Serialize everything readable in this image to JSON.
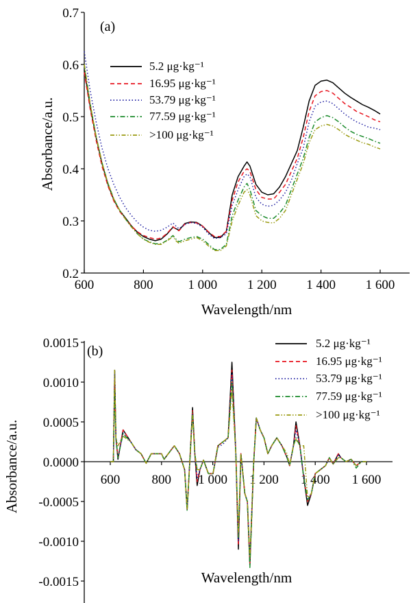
{
  "chart_data": [
    {
      "type": "line",
      "panel_label": "(a)",
      "xlabel": "Wavelength/nm",
      "ylabel": "Absorbance/a.u.",
      "xlim": [
        600,
        1700
      ],
      "ylim": [
        0.2,
        0.7
      ],
      "xticks": [
        600,
        800,
        1000,
        1200,
        1400,
        1600
      ],
      "xtick_labels": [
        "600",
        "800",
        "1 000",
        "1 200",
        "1 400",
        "1 600"
      ],
      "yticks": [
        0.2,
        0.3,
        0.4,
        0.5,
        0.6,
        0.7
      ],
      "ytick_labels": [
        "0.2",
        "0.3",
        "0.4",
        "0.5",
        "0.6",
        "0.7"
      ],
      "grid": false,
      "legend_position": "upper-left",
      "x": [
        600,
        620,
        640,
        660,
        680,
        700,
        720,
        740,
        760,
        780,
        800,
        820,
        840,
        860,
        880,
        900,
        910,
        920,
        940,
        960,
        980,
        1000,
        1020,
        1040,
        1060,
        1080,
        1100,
        1120,
        1140,
        1150,
        1160,
        1180,
        1200,
        1220,
        1240,
        1260,
        1280,
        1300,
        1320,
        1340,
        1360,
        1380,
        1400,
        1420,
        1440,
        1460,
        1480,
        1500,
        1520,
        1540,
        1560,
        1580,
        1600
      ],
      "series": [
        {
          "name": "5.2 μg·kg⁻¹",
          "color": "#000000",
          "dash": "solid",
          "values": [
            0.59,
            0.52,
            0.46,
            0.41,
            0.37,
            0.34,
            0.32,
            0.305,
            0.29,
            0.278,
            0.27,
            0.265,
            0.262,
            0.265,
            0.275,
            0.288,
            0.285,
            0.282,
            0.295,
            0.298,
            0.297,
            0.29,
            0.278,
            0.268,
            0.268,
            0.28,
            0.35,
            0.385,
            0.405,
            0.413,
            0.405,
            0.37,
            0.355,
            0.35,
            0.352,
            0.365,
            0.385,
            0.41,
            0.435,
            0.48,
            0.53,
            0.56,
            0.568,
            0.57,
            0.565,
            0.555,
            0.545,
            0.537,
            0.53,
            0.523,
            0.518,
            0.512,
            0.505
          ]
        },
        {
          "name": "16.95 μg·kg⁻¹",
          "color": "#e8141e",
          "dash": "dashed",
          "values": [
            0.585,
            0.515,
            0.455,
            0.405,
            0.367,
            0.338,
            0.318,
            0.303,
            0.29,
            0.279,
            0.272,
            0.268,
            0.265,
            0.267,
            0.276,
            0.289,
            0.284,
            0.281,
            0.294,
            0.297,
            0.296,
            0.29,
            0.279,
            0.27,
            0.27,
            0.28,
            0.34,
            0.375,
            0.395,
            0.4,
            0.395,
            0.36,
            0.345,
            0.342,
            0.342,
            0.355,
            0.37,
            0.395,
            0.42,
            0.46,
            0.51,
            0.54,
            0.548,
            0.55,
            0.545,
            0.535,
            0.525,
            0.518,
            0.51,
            0.505,
            0.5,
            0.494,
            0.49
          ]
        },
        {
          "name": "53.79 μg·kg⁻¹",
          "color": "#1a1aa0",
          "dash": "dotted",
          "values": [
            0.625,
            0.55,
            0.49,
            0.44,
            0.4,
            0.37,
            0.345,
            0.325,
            0.31,
            0.297,
            0.288,
            0.282,
            0.28,
            0.282,
            0.288,
            0.296,
            0.29,
            0.285,
            0.293,
            0.297,
            0.295,
            0.288,
            0.275,
            0.266,
            0.268,
            0.275,
            0.33,
            0.36,
            0.385,
            0.39,
            0.385,
            0.345,
            0.332,
            0.328,
            0.33,
            0.34,
            0.355,
            0.378,
            0.41,
            0.44,
            0.49,
            0.52,
            0.528,
            0.53,
            0.525,
            0.515,
            0.505,
            0.497,
            0.49,
            0.485,
            0.48,
            0.478,
            0.475
          ]
        },
        {
          "name": "77.59 μg·kg⁻¹",
          "color": "#1a8a2a",
          "dash": "dashdot",
          "values": [
            0.6,
            0.525,
            0.462,
            0.412,
            0.372,
            0.342,
            0.32,
            0.303,
            0.288,
            0.275,
            0.265,
            0.26,
            0.256,
            0.256,
            0.263,
            0.272,
            0.265,
            0.26,
            0.265,
            0.268,
            0.27,
            0.265,
            0.255,
            0.245,
            0.245,
            0.255,
            0.31,
            0.34,
            0.365,
            0.372,
            0.36,
            0.32,
            0.31,
            0.305,
            0.305,
            0.315,
            0.33,
            0.36,
            0.39,
            0.42,
            0.46,
            0.49,
            0.498,
            0.502,
            0.498,
            0.49,
            0.48,
            0.472,
            0.466,
            0.462,
            0.458,
            0.453,
            0.449
          ]
        },
        {
          "name": ">100 μg·kg⁻¹",
          "color": "#9a9a10",
          "dash": "dashdotdot",
          "values": [
            0.6,
            0.525,
            0.462,
            0.412,
            0.372,
            0.342,
            0.32,
            0.303,
            0.288,
            0.275,
            0.265,
            0.259,
            0.255,
            0.255,
            0.262,
            0.27,
            0.262,
            0.257,
            0.262,
            0.265,
            0.268,
            0.262,
            0.252,
            0.243,
            0.243,
            0.252,
            0.3,
            0.33,
            0.355,
            0.36,
            0.35,
            0.31,
            0.3,
            0.297,
            0.296,
            0.305,
            0.32,
            0.35,
            0.38,
            0.41,
            0.45,
            0.475,
            0.482,
            0.485,
            0.482,
            0.475,
            0.466,
            0.46,
            0.455,
            0.45,
            0.447,
            0.442,
            0.438
          ]
        }
      ]
    },
    {
      "type": "line",
      "panel_label": "(b)",
      "xlabel": "Wavelength/nm",
      "ylabel": "Absorbance/a.u.",
      "xlim": [
        500,
        1700
      ],
      "ylim": [
        -0.0018,
        0.0015
      ],
      "xticks": [
        600,
        800,
        1000,
        1200,
        1400,
        1600
      ],
      "xtick_labels": [
        "600",
        "800",
        "1 000",
        "1 200",
        "1 400",
        "1 600"
      ],
      "yticks": [
        0.0015,
        0.001,
        0.0005,
        0,
        -0.0005,
        -0.001,
        -0.0015
      ],
      "ytick_labels": [
        "0.0015",
        "0.0010",
        "0.0005",
        "0.0000",
        "-0.0005",
        "-0.0010",
        "-0.0015"
      ],
      "grid": false,
      "legend_position": "upper-right",
      "x": [
        600,
        612,
        617,
        622,
        630,
        650,
        680,
        700,
        720,
        740,
        760,
        780,
        800,
        810,
        850,
        870,
        890,
        900,
        912,
        921,
        930,
        939,
        950,
        964,
        983,
        1001,
        1020,
        1040,
        1060,
        1075,
        1090,
        1100,
        1110,
        1125,
        1135,
        1145,
        1160,
        1170,
        1185,
        1200,
        1215,
        1230,
        1250,
        1270,
        1290,
        1300,
        1315,
        1325,
        1340,
        1355,
        1370,
        1385,
        1400,
        1420,
        1440,
        1455,
        1470,
        1490,
        1500,
        1520,
        1540,
        1560,
        1580,
        1600
      ],
      "series": [
        {
          "name": "5.2 μg·kg⁻¹",
          "color": "#000000",
          "dash": "solid",
          "values": [
            0,
            0,
            0.00115,
            0.0003,
            3e-05,
            0.0004,
            0.00025,
            0.00015,
            0.0001,
            -2e-05,
            0.0001,
            0.0001,
            0.0001,
            3e-05,
            0.0002,
            0.0001,
            -0.0001,
            -0.0006,
            0.0001,
            0.00068,
            0.0001,
            -0.0003,
            -0.0001,
            2e-05,
            -0.00015,
            -0.00015,
            0.0002,
            0.00025,
            0.0003,
            0.00125,
            0.0001,
            -0.0011,
            0.0001,
            -0.0004,
            -0.0005,
            -0.0013,
            0,
            0.00055,
            0.0004,
            0.0003,
            0.0001,
            0.0002,
            0.0003,
            0.0002,
            5e-05,
            -5e-05,
            0.0002,
            0.0005,
            0.0002,
            -0.0002,
            -0.00055,
            -0.0004,
            -0.00015,
            -0.0001,
            -5e-05,
            5e-05,
            -3e-05,
            0.0001,
            5e-05,
            0,
            3e-05,
            -5e-05,
            0,
            0
          ]
        },
        {
          "name": "16.95 μg·kg⁻¹",
          "color": "#e8141e",
          "dash": "dashed",
          "values": [
            0,
            0,
            0.00105,
            0.0003,
            5e-05,
            0.0004,
            0.00025,
            0.00015,
            0.0001,
            -2e-05,
            0.0001,
            0.0001,
            0.0001,
            3e-05,
            0.0002,
            0.0001,
            -0.0001,
            -0.0006,
            0.0001,
            0.00065,
            0.0001,
            -0.00025,
            -0.0001,
            2e-05,
            -0.00015,
            -0.00015,
            0.0002,
            0.00025,
            0.0003,
            0.00115,
            0.0001,
            -0.00105,
            0.0001,
            -0.0004,
            -0.0005,
            -0.00128,
            0,
            0.00055,
            0.0004,
            0.0003,
            0.0001,
            0.0002,
            0.0003,
            0.0002,
            5e-05,
            -5e-05,
            0.0002,
            0.00045,
            0.0002,
            -0.0002,
            -0.0005,
            -0.0004,
            -0.00015,
            -0.0001,
            -5e-05,
            5e-05,
            -3e-05,
            0.0001,
            5e-05,
            0,
            3e-05,
            -5e-05,
            0,
            0
          ]
        },
        {
          "name": "53.79 μg·kg⁻¹",
          "color": "#1a1aa0",
          "dash": "dotted",
          "values": [
            0,
            0,
            0.00115,
            0.0003,
            5e-05,
            0.00036,
            0.00025,
            0.00015,
            0.0001,
            -2e-05,
            0.0001,
            0.0001,
            0.0001,
            3e-05,
            0.0002,
            0.0001,
            -0.0001,
            -0.0006,
            0.0001,
            0.0006,
            0.0001,
            -0.0002,
            -0.0001,
            2e-05,
            -0.00015,
            -0.00015,
            0.00018,
            0.00022,
            0.0003,
            0.0011,
            0.0001,
            -0.001,
            0.0001,
            -0.0004,
            -0.0005,
            -0.0012,
            0,
            0.00055,
            0.0004,
            0.0003,
            0.0001,
            0.0002,
            0.0003,
            0.0002,
            5e-05,
            -5e-05,
            0.0002,
            0.0004,
            0.0002,
            -0.0002,
            -0.00048,
            -0.0004,
            -0.00015,
            -0.0001,
            -5e-05,
            5e-05,
            -3e-05,
            8e-05,
            5e-05,
            0,
            3e-05,
            -5e-05,
            0,
            0
          ]
        },
        {
          "name": "77.59 μg·kg⁻¹",
          "color": "#1a8a2a",
          "dash": "dashdot",
          "values": [
            0,
            0,
            0.0009,
            0.0003,
            5e-05,
            0.00035,
            0.00025,
            0.00015,
            0.0001,
            -2e-05,
            0.0001,
            0.0001,
            0.0001,
            3e-05,
            0.0002,
            0.0001,
            -0.0001,
            -0.00062,
            0.0001,
            0.00062,
            0.0001,
            -0.0001,
            -0.0001,
            2e-05,
            -0.00015,
            -0.00015,
            0.0002,
            0.00025,
            0.0003,
            0.001,
            0.0001,
            -0.00095,
            0.0001,
            -0.0004,
            -0.0005,
            -0.00133,
            0,
            0.00055,
            0.0004,
            0.0003,
            0.0001,
            0.0002,
            0.0003,
            0.0002,
            5e-05,
            -5e-05,
            0.0002,
            0.0003,
            0.0002,
            -0.0002,
            -0.00048,
            -0.0004,
            -0.00015,
            -0.0001,
            -5e-05,
            5e-05,
            -3e-05,
            5e-05,
            5e-05,
            0,
            3e-05,
            -8e-05,
            0,
            0
          ]
        },
        {
          "name": ">100 μg·kg⁻¹",
          "color": "#9a9a10",
          "dash": "dashdotdot",
          "values": [
            0,
            0,
            0.00115,
            0.0003,
            0.0002,
            0.00032,
            0.00025,
            0.00015,
            0.0001,
            -2e-05,
            0.0001,
            0.0001,
            0.0001,
            3e-05,
            0.0002,
            0.0001,
            -0.0001,
            -0.0006,
            0.0001,
            0.00058,
            0.0001,
            -0.0001,
            -0.0001,
            2e-05,
            -0.00015,
            -0.00015,
            0.0002,
            0.00025,
            0.0003,
            0.0009,
            0.0001,
            -0.0009,
            0.0001,
            -0.0004,
            -0.0005,
            -0.0012,
            0,
            0.00055,
            0.0004,
            0.0003,
            0.0001,
            0.0002,
            0.0003,
            0.0002,
            0.0001,
            -5e-05,
            0.0002,
            0.00028,
            0.0002,
            0.0002,
            -0.00045,
            -0.0004,
            -0.00015,
            -0.0001,
            -5e-05,
            5e-05,
            -3e-05,
            5e-05,
            5e-05,
            0,
            3e-05,
            -5e-05,
            0,
            0
          ]
        }
      ]
    }
  ]
}
